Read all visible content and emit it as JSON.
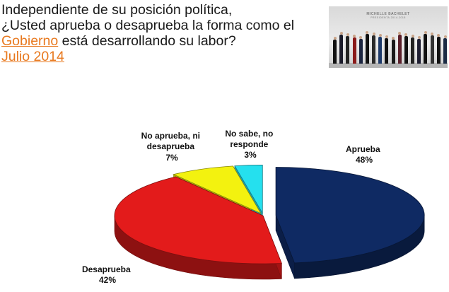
{
  "title": {
    "line1": "Independiente de su posición política,",
    "line2": "¿Usted aprueba o desaprueba la forma como el",
    "line3_link": "Gobierno",
    "line3_rest": " está desarrollando su labor?",
    "date": "Julio 2014"
  },
  "photo": {
    "banner_title": "MICHELLE BACHELET",
    "banner_subtitle": "PRESIDENTA 2014-2018"
  },
  "colors": {
    "accent": "#e8791f",
    "aprueba": "#0f2a63",
    "desaprueba": "#e31b1b",
    "ni": "#f3f20f",
    "nosabe": "#25e0ee"
  },
  "chart_data": {
    "type": "pie",
    "title": "",
    "slices": [
      {
        "label": "Aprueba",
        "value": 48,
        "display": "48%",
        "color": "#0f2a63"
      },
      {
        "label": "Desaprueba",
        "value": 42,
        "display": "42%",
        "color": "#e31b1b"
      },
      {
        "label": "No aprueba, ni desaprueba",
        "value": 7,
        "display": "7%",
        "color": "#f3f20f"
      },
      {
        "label": "No sabe, no responde",
        "value": 3,
        "display": "3%",
        "color": "#25e0ee"
      }
    ],
    "label_lines": {
      "aprueba": [
        "Aprueba"
      ],
      "desaprueba": [
        "Desaprueba"
      ],
      "ni": [
        "No aprueba, ni",
        "desaprueba"
      ],
      "nosabe": [
        "No sabe, no",
        "responde"
      ]
    }
  }
}
